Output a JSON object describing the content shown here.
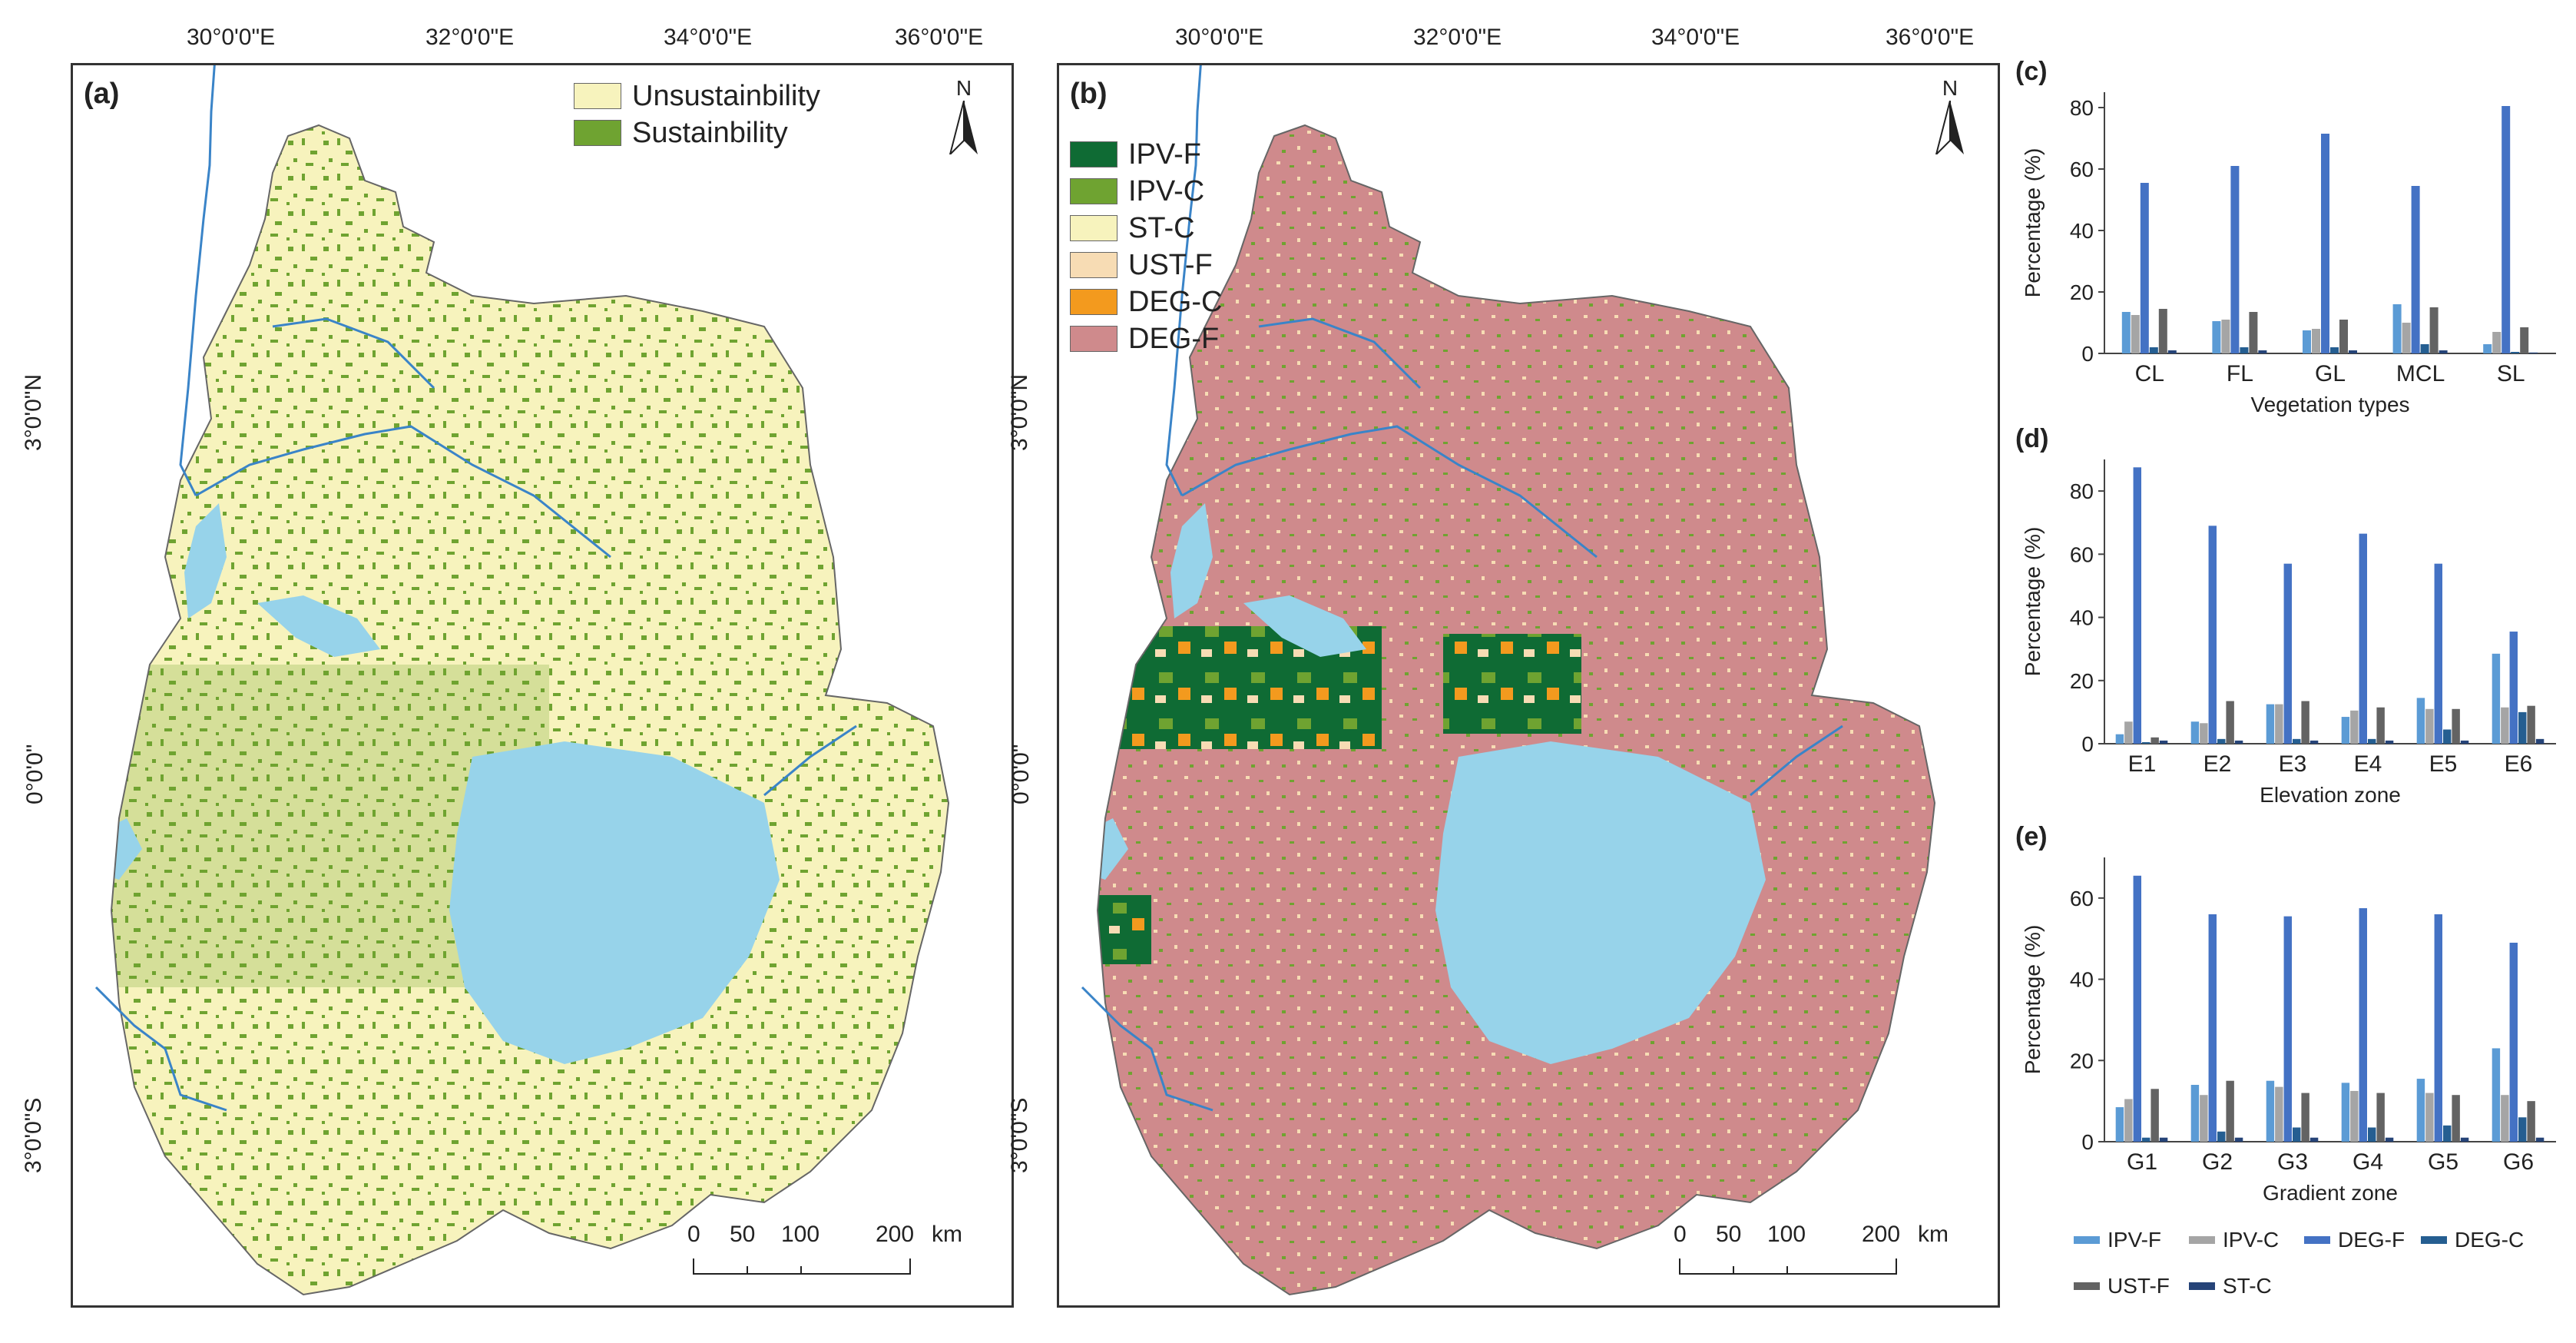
{
  "panel_a": {
    "label": "(a)",
    "legend": [
      {
        "name": "Unsustainbility",
        "color": "#f7f3bd"
      },
      {
        "name": "Sustainbility",
        "color": "#6fa331"
      }
    ],
    "north": "N",
    "top_ticks": [
      "30°0'0\"E",
      "32°0'0\"E",
      "34°0'0\"E",
      "36°0'0\"E"
    ],
    "left_ticks": [
      "3°0'0\"N",
      "0°0'0\"",
      "3°0'0\"S"
    ],
    "scale": {
      "labels": [
        "0",
        "50",
        "100",
        "200"
      ],
      "unit": "km"
    }
  },
  "panel_b": {
    "label": "(b)",
    "legend": [
      {
        "name": "IPV-F",
        "color": "#0f6b34"
      },
      {
        "name": "IPV-C",
        "color": "#6fa331"
      },
      {
        "name": "ST-C",
        "color": "#f7f3bd"
      },
      {
        "name": "UST-F",
        "color": "#f7dcb4"
      },
      {
        "name": "DEG-C",
        "color": "#f39a1e"
      },
      {
        "name": "DEG-F",
        "color": "#cf8a8c"
      }
    ],
    "north": "N",
    "top_ticks": [
      "30°0'0\"E",
      "32°0'0\"E",
      "34°0'0\"E",
      "36°0'0\"E"
    ],
    "left_ticks": [
      "3°0'0\"N",
      "0°0'0\"",
      "3°0'0\"S"
    ],
    "scale": {
      "labels": [
        "0",
        "50",
        "100",
        "200"
      ],
      "unit": "km"
    }
  },
  "colors": {
    "water": "#97d3ea",
    "river": "#3a84c8",
    "frame": "#333333"
  },
  "chart_data": [
    {
      "label": "(c)",
      "type": "bar",
      "xlabel": "Vegetation types",
      "ylabel": "Percentage (%)",
      "ylim": [
        0,
        85
      ],
      "yticks": [
        0,
        20,
        40,
        60,
        80
      ],
      "categories": [
        "CL",
        "FL",
        "GL",
        "MCL",
        "SL"
      ],
      "series": [
        {
          "name": "IPV-F",
          "color": "#5b9bd5",
          "values": [
            13.5,
            10.5,
            7.5,
            16,
            3
          ]
        },
        {
          "name": "IPV-C",
          "color": "#a5a5a5",
          "values": [
            12.5,
            11,
            8,
            10,
            7
          ]
        },
        {
          "name": "DEG-F",
          "color": "#4472c4",
          "values": [
            55.5,
            61,
            71.5,
            54.5,
            80.5
          ]
        },
        {
          "name": "DEG-C",
          "color": "#255e91",
          "values": [
            2,
            2,
            2,
            3,
            0.5
          ]
        },
        {
          "name": "UST-F",
          "color": "#636363",
          "values": [
            14.5,
            13.5,
            11,
            15,
            8.5
          ]
        },
        {
          "name": "ST-C",
          "color": "#264478",
          "values": [
            1,
            1,
            1,
            1,
            0.3
          ]
        }
      ]
    },
    {
      "label": "(d)",
      "type": "bar",
      "xlabel": "Elevation zone",
      "ylabel": "Percentage (%)",
      "ylim": [
        0,
        90
      ],
      "yticks": [
        0,
        20,
        40,
        60,
        80
      ],
      "categories": [
        "E1",
        "E2",
        "E3",
        "E4",
        "E5",
        "E6"
      ],
      "series": [
        {
          "name": "IPV-F",
          "color": "#5b9bd5",
          "values": [
            3,
            7,
            12.5,
            8.5,
            14.5,
            28.5
          ]
        },
        {
          "name": "IPV-C",
          "color": "#a5a5a5",
          "values": [
            7,
            6.5,
            12.5,
            10.5,
            11,
            11.5
          ]
        },
        {
          "name": "DEG-F",
          "color": "#4472c4",
          "values": [
            87.5,
            69,
            57,
            66.5,
            57,
            35.5
          ]
        },
        {
          "name": "DEG-C",
          "color": "#255e91",
          "values": [
            0.5,
            1.5,
            1.5,
            1.5,
            4.5,
            10
          ]
        },
        {
          "name": "UST-F",
          "color": "#636363",
          "values": [
            2,
            13.5,
            13.5,
            11.5,
            11,
            12
          ]
        },
        {
          "name": "ST-C",
          "color": "#264478",
          "values": [
            1,
            1,
            1,
            1,
            1,
            1.5
          ]
        }
      ]
    },
    {
      "label": "(e)",
      "type": "bar",
      "xlabel": "Gradient zone",
      "ylabel": "Percentage (%)",
      "ylim": [
        0,
        70
      ],
      "yticks": [
        0,
        20,
        40,
        60
      ],
      "categories": [
        "G1",
        "G2",
        "G3",
        "G4",
        "G5",
        "G6"
      ],
      "series": [
        {
          "name": "IPV-F",
          "color": "#5b9bd5",
          "values": [
            8.5,
            14,
            15,
            14.5,
            15.5,
            23
          ]
        },
        {
          "name": "IPV-C",
          "color": "#a5a5a5",
          "values": [
            10.5,
            11.5,
            13.5,
            12.5,
            12,
            11.5
          ]
        },
        {
          "name": "DEG-F",
          "color": "#4472c4",
          "values": [
            65.5,
            56,
            55.5,
            57.5,
            56,
            49
          ]
        },
        {
          "name": "DEG-C",
          "color": "#255e91",
          "values": [
            1,
            2.5,
            3.5,
            3.5,
            4,
            6
          ]
        },
        {
          "name": "UST-F",
          "color": "#636363",
          "values": [
            13,
            15,
            12,
            12,
            11.5,
            10
          ]
        },
        {
          "name": "ST-C",
          "color": "#264478",
          "values": [
            1,
            1,
            1,
            1,
            1,
            1
          ]
        }
      ]
    }
  ],
  "bottom_legend": [
    {
      "name": "IPV-F",
      "color": "#5b9bd5"
    },
    {
      "name": "IPV-C",
      "color": "#a5a5a5"
    },
    {
      "name": "DEG-F",
      "color": "#4472c4"
    },
    {
      "name": "DEG-C",
      "color": "#255e91"
    },
    {
      "name": "UST-F",
      "color": "#636363"
    },
    {
      "name": "ST-C",
      "color": "#264478"
    }
  ]
}
